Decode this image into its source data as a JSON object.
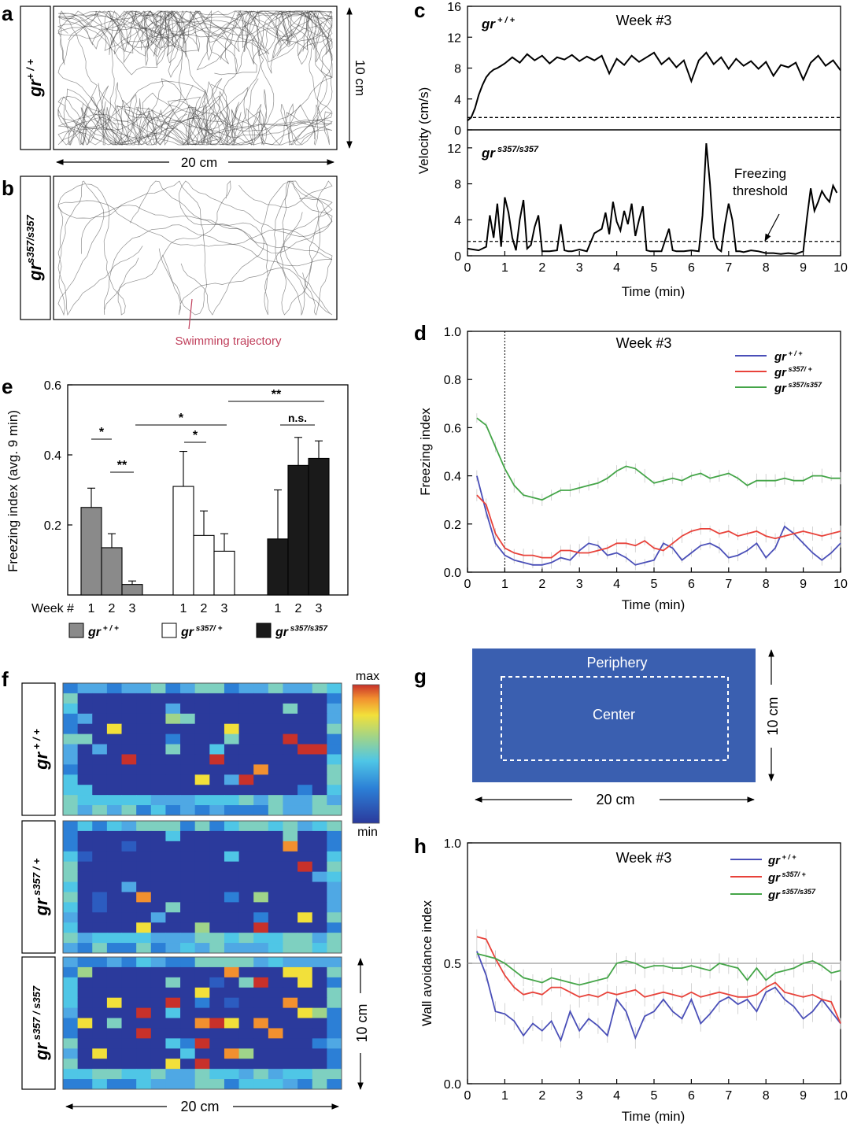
{
  "panels": {
    "a": "a",
    "b": "b",
    "c": "c",
    "d": "d",
    "e": "e",
    "f": "f",
    "g": "g",
    "h": "h"
  },
  "panel_a": {
    "genotype": "gr",
    "sup": "+ / +",
    "width_label": "20 cm",
    "height_label": "10 cm"
  },
  "panel_b": {
    "genotype": "gr",
    "sup": "s357/s357",
    "annotation": "Swimming trajectory",
    "annotation_color": "#c0405c"
  },
  "panel_c": {
    "ylabel": "Velocity (cm/s)",
    "xlabel": "Time (min)",
    "top_title": "Week #3",
    "top_geno": "gr",
    "top_sup": "+ / +",
    "bottom_geno": "gr",
    "bottom_sup": "s357/s357",
    "freezing_label_1": "Freezing",
    "freezing_label_2": "threshold",
    "threshold": 1.6,
    "x_ticks": [
      "0",
      "1",
      "2",
      "3",
      "4",
      "5",
      "6",
      "7",
      "8",
      "9",
      "10"
    ],
    "top_y_ticks": [
      "0",
      "4",
      "8",
      "12",
      "16"
    ],
    "bottom_y_ticks": [
      "0",
      "4",
      "8",
      "12"
    ]
  },
  "panel_d": {
    "title": "Week #3",
    "ylabel": "Freezing index",
    "xlabel": "Time (min)",
    "x_ticks": [
      "0",
      "1",
      "2",
      "3",
      "4",
      "5",
      "6",
      "7",
      "8",
      "9",
      "10"
    ],
    "y_ticks": [
      "0.0",
      "0.2",
      "0.4",
      "0.6",
      "0.8",
      "1.0"
    ],
    "legend": [
      {
        "geno": "gr",
        "sup": "+ / +",
        "color": "#4a4fb8"
      },
      {
        "geno": "gr",
        "sup": "s357/ +",
        "color": "#e8423a"
      },
      {
        "geno": "gr",
        "sup": "s357/s357",
        "color": "#44a548"
      }
    ]
  },
  "panel_e": {
    "ylabel": "Freezing index (avg. 9 min)",
    "y_ticks": [
      "0.2",
      "0.4",
      "0.6"
    ],
    "week_label": "Week #",
    "weeks": [
      "1",
      "2",
      "3"
    ],
    "sig": [
      "*",
      "**",
      "*",
      "*",
      "**",
      "n.s."
    ],
    "legend": [
      {
        "geno": "gr",
        "sup": "+ / +",
        "color": "#8a8a8a"
      },
      {
        "geno": "gr",
        "sup": "s357/ +",
        "color": "#ffffff"
      },
      {
        "geno": "gr",
        "sup": "s357/s357",
        "color": "#1a1a1a"
      }
    ]
  },
  "panel_f": {
    "rows": [
      {
        "geno": "gr",
        "sup": "+ / +"
      },
      {
        "geno": "gr",
        "sup": "s357 / +"
      },
      {
        "geno": "gr",
        "sup": "s357 / s357"
      }
    ],
    "colorbar_max": "max",
    "colorbar_min": "min",
    "width_label": "20 cm",
    "height_label": "10 cm"
  },
  "panel_g": {
    "periphery": "Periphery",
    "center": "Center",
    "width_label": "20 cm",
    "height_label": "10 cm",
    "fill_color": "#3a5fb0"
  },
  "panel_h": {
    "title": "Week #3",
    "ylabel": "Wall avoidance index",
    "xlabel": "Time (min)",
    "x_ticks": [
      "0",
      "1",
      "2",
      "3",
      "4",
      "5",
      "6",
      "7",
      "8",
      "9",
      "10"
    ],
    "y_ticks": [
      "0.0",
      "0.5",
      "1.0"
    ],
    "legend": [
      {
        "geno": "gr",
        "sup": "+ / +",
        "color": "#4a4fb8"
      },
      {
        "geno": "gr",
        "sup": "s357/ +",
        "color": "#e8423a"
      },
      {
        "geno": "gr",
        "sup": "s357/s357",
        "color": "#44a548"
      }
    ]
  },
  "chart_data": [
    {
      "panel": "c-top",
      "type": "line",
      "title": "Week #3",
      "xlabel": "Time (min)",
      "ylabel": "Velocity (cm/s)",
      "xlim": [
        0,
        10
      ],
      "ylim": [
        0,
        16
      ],
      "series": [
        {
          "name": "gr +/+",
          "x": [
            0,
            0.1,
            0.2,
            0.3,
            0.4,
            0.5,
            0.6,
            0.7,
            0.8,
            0.9,
            1.0,
            1.2,
            1.4,
            1.6,
            1.8,
            2.0,
            2.2,
            2.4,
            2.6,
            2.8,
            3.0,
            3.2,
            3.4,
            3.6,
            3.8,
            4.0,
            4.2,
            4.4,
            4.6,
            4.8,
            5.0,
            5.2,
            5.4,
            5.6,
            5.8,
            6.0,
            6.2,
            6.4,
            6.6,
            6.8,
            7.0,
            7.2,
            7.4,
            7.6,
            7.8,
            8.0,
            8.2,
            8.4,
            8.6,
            8.8,
            9.0,
            9.2,
            9.4,
            9.6,
            9.8,
            10.0
          ],
          "y": [
            1.2,
            1.6,
            2.8,
            4.5,
            5.8,
            6.8,
            7.4,
            7.8,
            8.0,
            8.3,
            8.6,
            9.4,
            8.7,
            9.8,
            9.0,
            9.6,
            8.6,
            9.4,
            9.1,
            9.7,
            8.9,
            9.5,
            9.0,
            9.6,
            7.3,
            9.2,
            8.4,
            9.6,
            8.8,
            9.4,
            10.0,
            8.5,
            9.3,
            8.1,
            9.0,
            6.3,
            9.0,
            10.0,
            8.5,
            9.4,
            7.9,
            9.2,
            8.3,
            8.9,
            7.9,
            8.8,
            7.0,
            8.4,
            8.1,
            8.7,
            6.5,
            8.7,
            9.6,
            8.3,
            9.0,
            7.7
          ]
        }
      ],
      "threshold": 1.6
    },
    {
      "panel": "c-bottom",
      "type": "line",
      "xlabel": "Time (min)",
      "ylabel": "Velocity (cm/s)",
      "xlim": [
        0,
        10
      ],
      "ylim": [
        0,
        14
      ],
      "series": [
        {
          "name": "gr s357/s357",
          "x": [
            0,
            0.3,
            0.5,
            0.6,
            0.7,
            0.8,
            0.9,
            1.0,
            1.1,
            1.2,
            1.3,
            1.4,
            1.5,
            1.6,
            1.7,
            1.8,
            1.9,
            2.0,
            2.2,
            2.4,
            2.5,
            2.6,
            2.7,
            2.8,
            3.0,
            3.2,
            3.4,
            3.6,
            3.7,
            3.8,
            3.9,
            4.0,
            4.1,
            4.2,
            4.3,
            4.4,
            4.5,
            4.6,
            4.7,
            4.8,
            4.9,
            5.0,
            5.2,
            5.4,
            5.5,
            5.6,
            5.8,
            6.0,
            6.2,
            6.3,
            6.4,
            6.5,
            6.6,
            6.7,
            6.8,
            6.9,
            7.0,
            7.1,
            7.2,
            7.3,
            7.4,
            7.6,
            7.8,
            8.0,
            8.2,
            8.4,
            8.6,
            8.8,
            9.0,
            9.1,
            9.2,
            9.3,
            9.4,
            9.5,
            9.6,
            9.7,
            9.8,
            9.9
          ],
          "y": [
            0.8,
            0.6,
            1.0,
            4.5,
            2.0,
            5.8,
            1.0,
            6.5,
            4.8,
            2.0,
            0.6,
            4.0,
            6.2,
            0.8,
            1.2,
            3.2,
            4.5,
            0.5,
            0.5,
            0.6,
            3.5,
            0.6,
            0.5,
            0.5,
            0.7,
            0.5,
            2.5,
            3.0,
            4.8,
            2.4,
            6.0,
            3.8,
            2.8,
            5.0,
            3.5,
            5.8,
            2.2,
            4.0,
            5.5,
            0.6,
            0.5,
            0.5,
            0.5,
            3.0,
            0.6,
            0.5,
            0.5,
            0.6,
            0.5,
            4.5,
            12.5,
            8.0,
            2.0,
            0.8,
            0.5,
            3.5,
            5.8,
            4.0,
            0.5,
            0.5,
            0.4,
            0.6,
            0.5,
            0.3,
            0.3,
            0.2,
            0.3,
            0.2,
            0.5,
            4.2,
            7.5,
            5.0,
            6.0,
            7.2,
            6.5,
            6.0,
            7.8,
            7.0
          ]
        }
      ],
      "threshold": 1.6
    },
    {
      "panel": "d",
      "type": "line",
      "title": "Week #3",
      "xlabel": "Time (min)",
      "ylabel": "Freezing index",
      "xlim": [
        0,
        10
      ],
      "ylim": [
        0,
        1
      ],
      "x": [
        0.25,
        0.5,
        0.75,
        1.0,
        1.25,
        1.5,
        1.75,
        2.0,
        2.25,
        2.5,
        2.75,
        3.0,
        3.25,
        3.5,
        3.75,
        4.0,
        4.25,
        4.5,
        4.75,
        5.0,
        5.25,
        5.5,
        5.75,
        6.0,
        6.25,
        6.5,
        6.75,
        7.0,
        7.25,
        7.5,
        7.75,
        8.0,
        8.25,
        8.5,
        8.75,
        9.0,
        9.25,
        9.5,
        9.75,
        10.0
      ],
      "series": [
        {
          "name": "gr +/+",
          "values": [
            0.4,
            0.25,
            0.12,
            0.07,
            0.05,
            0.04,
            0.03,
            0.03,
            0.04,
            0.06,
            0.05,
            0.09,
            0.12,
            0.11,
            0.07,
            0.08,
            0.06,
            0.03,
            0.04,
            0.05,
            0.12,
            0.1,
            0.05,
            0.08,
            0.11,
            0.12,
            0.1,
            0.06,
            0.07,
            0.09,
            0.12,
            0.06,
            0.1,
            0.19,
            0.16,
            0.12,
            0.08,
            0.05,
            0.08,
            0.12
          ]
        },
        {
          "name": "gr s357/+",
          "values": [
            0.32,
            0.28,
            0.16,
            0.1,
            0.08,
            0.07,
            0.07,
            0.06,
            0.06,
            0.09,
            0.09,
            0.08,
            0.08,
            0.09,
            0.1,
            0.12,
            0.12,
            0.11,
            0.13,
            0.1,
            0.09,
            0.12,
            0.15,
            0.17,
            0.18,
            0.18,
            0.16,
            0.17,
            0.15,
            0.16,
            0.17,
            0.15,
            0.14,
            0.15,
            0.16,
            0.17,
            0.16,
            0.15,
            0.16,
            0.17
          ]
        },
        {
          "name": "gr s357/s357",
          "values": [
            0.64,
            0.61,
            0.52,
            0.43,
            0.36,
            0.32,
            0.31,
            0.3,
            0.32,
            0.34,
            0.34,
            0.35,
            0.36,
            0.37,
            0.39,
            0.42,
            0.44,
            0.43,
            0.4,
            0.37,
            0.38,
            0.39,
            0.38,
            0.4,
            0.41,
            0.39,
            0.4,
            0.41,
            0.39,
            0.36,
            0.38,
            0.38,
            0.38,
            0.39,
            0.38,
            0.38,
            0.4,
            0.4,
            0.39,
            0.39
          ]
        }
      ]
    },
    {
      "panel": "e",
      "type": "bar",
      "ylabel": "Freezing index (avg. 9 min)",
      "ylim": [
        0,
        0.6
      ],
      "categories": [
        "1",
        "2",
        "3"
      ],
      "series": [
        {
          "name": "gr +/+",
          "values": [
            0.25,
            0.135,
            0.03
          ],
          "errors": [
            0.055,
            0.04,
            0.01
          ]
        },
        {
          "name": "gr s357/+",
          "values": [
            0.31,
            0.17,
            0.125
          ],
          "errors": [
            0.1,
            0.07,
            0.05
          ]
        },
        {
          "name": "gr s357/s357",
          "values": [
            0.16,
            0.37,
            0.39
          ],
          "errors": [
            0.14,
            0.08,
            0.05
          ]
        }
      ]
    },
    {
      "panel": "h",
      "type": "line",
      "title": "Week #3",
      "xlabel": "Time (min)",
      "ylabel": "Wall avoidance index",
      "xlim": [
        0,
        10
      ],
      "ylim": [
        0,
        1
      ],
      "reference_line": 0.5,
      "x": [
        0.25,
        0.5,
        0.75,
        1.0,
        1.25,
        1.5,
        1.75,
        2.0,
        2.25,
        2.5,
        2.75,
        3.0,
        3.25,
        3.5,
        3.75,
        4.0,
        4.25,
        4.5,
        4.75,
        5.0,
        5.25,
        5.5,
        5.75,
        6.0,
        6.25,
        6.5,
        6.75,
        7.0,
        7.25,
        7.5,
        7.75,
        8.0,
        8.25,
        8.5,
        8.75,
        9.0,
        9.25,
        9.5,
        9.75,
        10.0
      ],
      "series": [
        {
          "name": "gr +/+",
          "values": [
            0.55,
            0.45,
            0.3,
            0.29,
            0.26,
            0.2,
            0.25,
            0.22,
            0.26,
            0.18,
            0.3,
            0.22,
            0.27,
            0.24,
            0.2,
            0.35,
            0.3,
            0.19,
            0.28,
            0.3,
            0.35,
            0.3,
            0.27,
            0.35,
            0.25,
            0.29,
            0.34,
            0.36,
            0.33,
            0.35,
            0.3,
            0.38,
            0.4,
            0.35,
            0.32,
            0.27,
            0.3,
            0.35,
            0.3,
            0.25
          ]
        },
        {
          "name": "gr s357/+",
          "values": [
            0.61,
            0.6,
            0.52,
            0.45,
            0.4,
            0.37,
            0.38,
            0.37,
            0.4,
            0.4,
            0.38,
            0.36,
            0.37,
            0.36,
            0.38,
            0.37,
            0.38,
            0.39,
            0.36,
            0.37,
            0.38,
            0.37,
            0.36,
            0.38,
            0.36,
            0.37,
            0.38,
            0.37,
            0.36,
            0.36,
            0.37,
            0.4,
            0.42,
            0.38,
            0.37,
            0.36,
            0.37,
            0.35,
            0.34,
            0.25
          ]
        },
        {
          "name": "gr s357/s357",
          "values": [
            0.54,
            0.53,
            0.52,
            0.5,
            0.47,
            0.44,
            0.43,
            0.42,
            0.44,
            0.43,
            0.42,
            0.41,
            0.42,
            0.43,
            0.44,
            0.5,
            0.51,
            0.5,
            0.48,
            0.49,
            0.49,
            0.48,
            0.48,
            0.49,
            0.48,
            0.47,
            0.5,
            0.49,
            0.48,
            0.43,
            0.48,
            0.43,
            0.46,
            0.47,
            0.48,
            0.5,
            0.51,
            0.49,
            0.46,
            0.47
          ]
        }
      ]
    }
  ]
}
